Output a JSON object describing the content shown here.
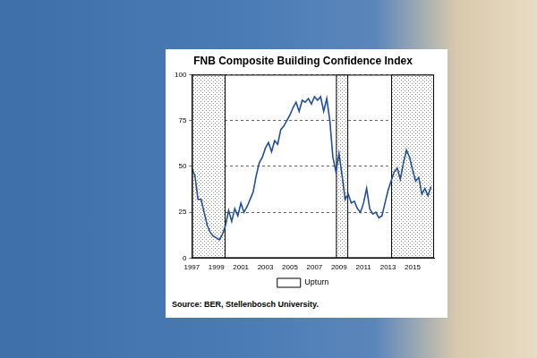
{
  "chart_data": {
    "type": "line",
    "title": "FNB Composite Building Confidence Index",
    "source": "Source: BER, Stellenbosch University.",
    "x": [
      1997,
      1997.25,
      1997.5,
      1997.75,
      1998,
      1998.25,
      1998.5,
      1998.75,
      1999,
      1999.25,
      1999.5,
      1999.75,
      2000,
      2000.25,
      2000.5,
      2000.75,
      2001,
      2001.25,
      2001.5,
      2001.75,
      2002,
      2002.25,
      2002.5,
      2002.75,
      2003,
      2003.25,
      2003.5,
      2003.75,
      2004,
      2004.25,
      2004.5,
      2004.75,
      2005,
      2005.25,
      2005.5,
      2005.75,
      2006,
      2006.25,
      2006.5,
      2006.75,
      2007,
      2007.25,
      2007.5,
      2007.75,
      2008,
      2008.25,
      2008.5,
      2008.75,
      2009,
      2009.25,
      2009.5,
      2009.75,
      2010,
      2010.25,
      2010.5,
      2010.75,
      2011,
      2011.25,
      2011.5,
      2011.75,
      2012,
      2012.25,
      2012.5,
      2012.75,
      2013,
      2013.25,
      2013.5,
      2013.75,
      2014,
      2014.25,
      2014.5,
      2014.75,
      2015,
      2015.25,
      2015.5,
      2015.75,
      2016,
      2016.25,
      2016.5
    ],
    "values": [
      49,
      45,
      32,
      32,
      25,
      18,
      14,
      12,
      11,
      10,
      13,
      18,
      26,
      20,
      27,
      23,
      30,
      25,
      28,
      32,
      36,
      45,
      52,
      55,
      60,
      63,
      58,
      64,
      62,
      70,
      72,
      75,
      78,
      82,
      85,
      80,
      86,
      85,
      87,
      84,
      88,
      86,
      88,
      80,
      87,
      75,
      55,
      47,
      57,
      45,
      32,
      35,
      30,
      31,
      27,
      25,
      30,
      38,
      27,
      24,
      25,
      22,
      23,
      30,
      37,
      42,
      47,
      49,
      43,
      52,
      59,
      55,
      48,
      42,
      44,
      35,
      38,
      34,
      39
    ],
    "color": "#1f4f9a",
    "shaded_periods": {
      "label": "Upturn",
      "ranges": [
        [
          1997,
          1999.75
        ],
        [
          2008.75,
          2009.75
        ],
        [
          2013.25,
          2016.75
        ]
      ]
    },
    "xlim": [
      1997,
      2016.75
    ],
    "xticks": [
      1997,
      1999,
      2001,
      2003,
      2005,
      2007,
      2009,
      2011,
      2013,
      2015
    ],
    "ylim": [
      0,
      100
    ],
    "yticks": [
      0,
      25,
      50,
      75,
      100
    ],
    "grid": true,
    "legend": "bottom"
  }
}
